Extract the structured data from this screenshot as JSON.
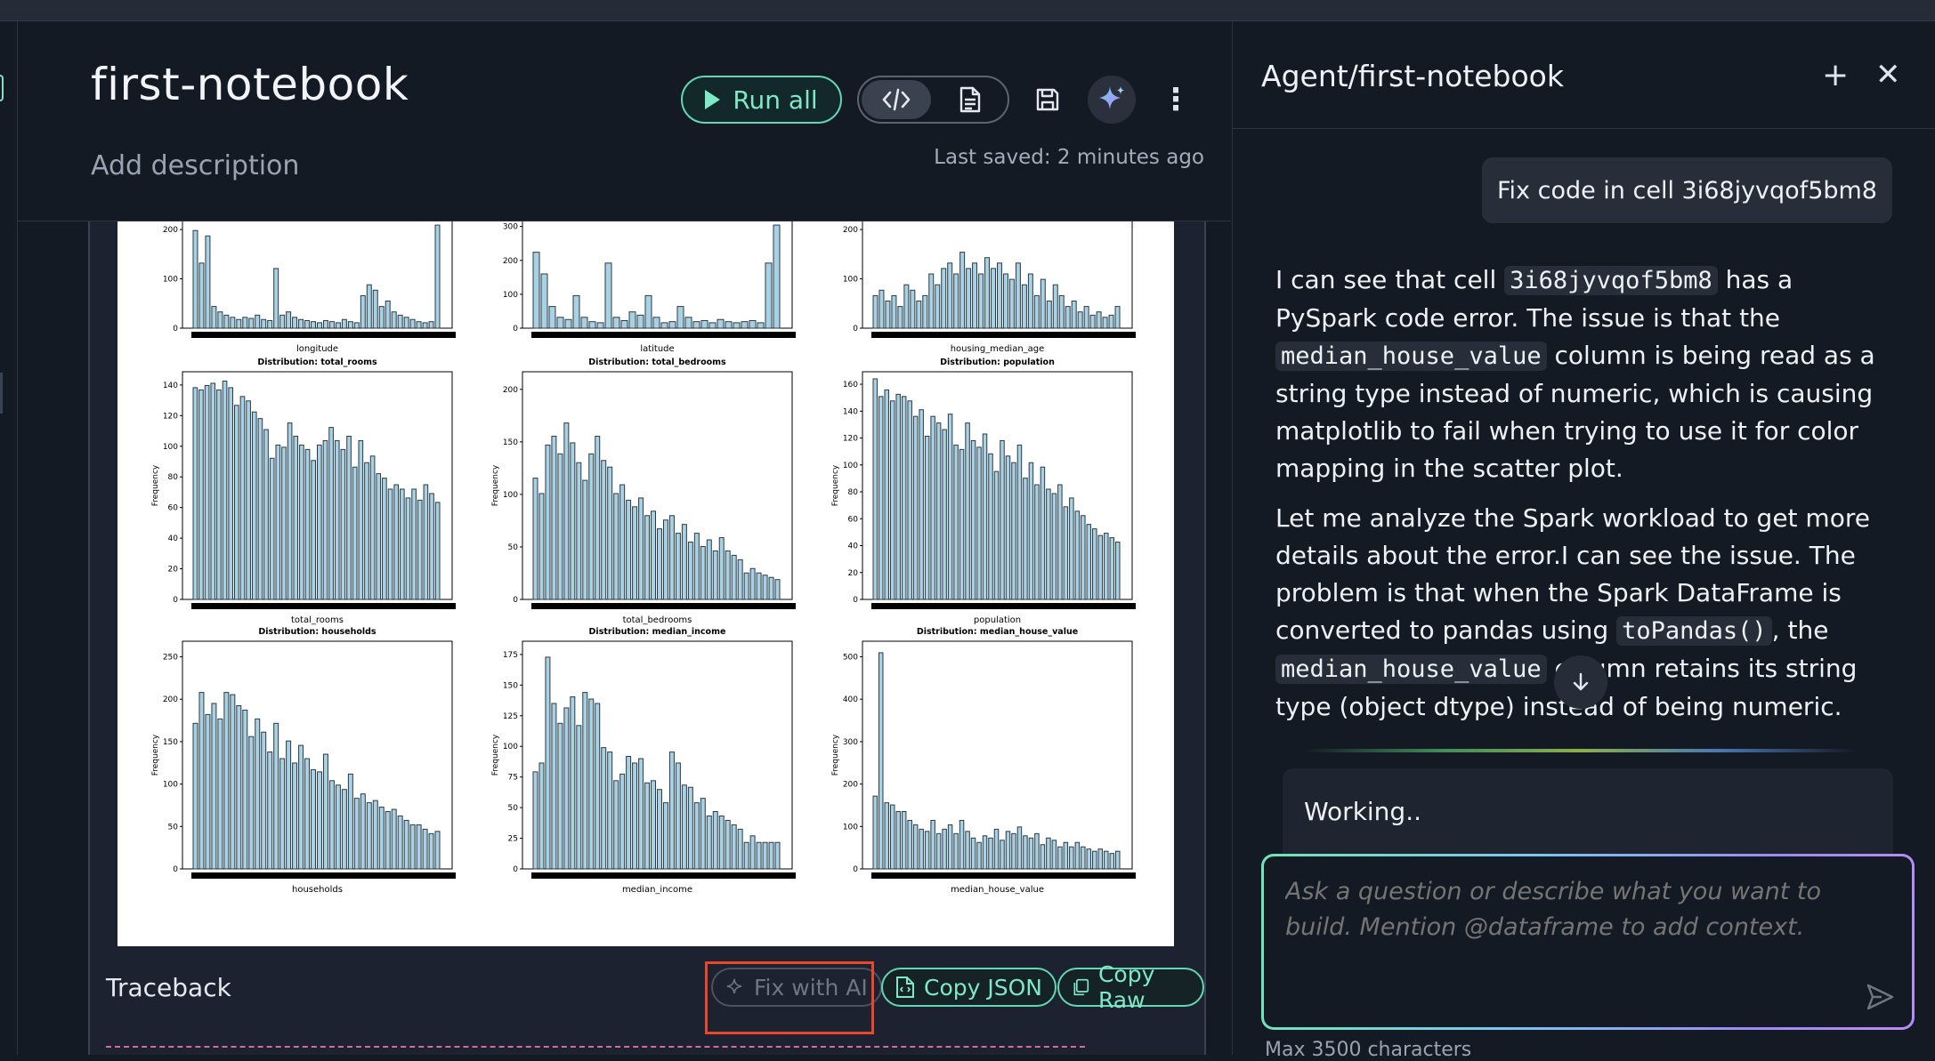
{
  "notebook": {
    "title": "first-notebook",
    "description_placeholder": "Add description",
    "last_saved": "Last saved: 2 minutes ago",
    "run_all_label": "Run all",
    "icons": [
      "play-icon",
      "code-icon",
      "document-icon",
      "save-icon",
      "sparkle-icon",
      "more-vertical-icon"
    ]
  },
  "plots": {
    "row0": [
      {
        "xlabel": "longitude",
        "yticks": [
          "0",
          "100",
          "200"
        ]
      },
      {
        "xlabel": "latitude",
        "yticks": [
          "0",
          "100",
          "200",
          "300"
        ]
      },
      {
        "xlabel": "housing_median_age",
        "yticks": [
          "0",
          "100",
          "200"
        ]
      }
    ],
    "panels": [
      {
        "title": "Distribution: total_rooms",
        "xlabel": "total_rooms",
        "ylabel": "Frequency",
        "yticks": [
          "0",
          "20",
          "40",
          "60",
          "80",
          "100",
          "120",
          "140"
        ]
      },
      {
        "title": "Distribution: total_bedrooms",
        "xlabel": "total_bedrooms",
        "ylabel": "Frequency",
        "yticks": [
          "0",
          "50",
          "100",
          "150",
          "200"
        ]
      },
      {
        "title": "Distribution: population",
        "xlabel": "population",
        "ylabel": "Frequency",
        "yticks": [
          "0",
          "20",
          "40",
          "60",
          "80",
          "100",
          "120",
          "140",
          "160"
        ]
      },
      {
        "title": "Distribution: households",
        "xlabel": "households",
        "ylabel": "Frequency",
        "yticks": [
          "0",
          "50",
          "100",
          "150",
          "200",
          "250"
        ]
      },
      {
        "title": "Distribution: median_income",
        "xlabel": "median_income",
        "ylabel": "Frequency",
        "yticks": [
          "0",
          "25",
          "50",
          "75",
          "100",
          "125",
          "150",
          "175"
        ]
      },
      {
        "title": "Distribution: median_house_value",
        "xlabel": "median_house_value",
        "ylabel": "Frequency",
        "yticks": [
          "0",
          "100",
          "200",
          "300",
          "400",
          "500"
        ]
      }
    ]
  },
  "traceback": {
    "label": "Traceback",
    "fix_with_ai": "Fix with AI",
    "copy_json": "Copy JSON",
    "copy_raw": "Copy Raw"
  },
  "agent": {
    "title": "Agent/first-notebook",
    "user_message": "Fix code in cell 3i68jyvqof5bm8",
    "reply": {
      "p1_a": "I can see that cell ",
      "p1_code1": "3i68jyvqof5bm8",
      "p1_b": " has a PySpark code error. The issue is that the ",
      "p1_code2": "median_house_value",
      "p1_c": " column is being read as a string type instead of numeric, which is causing matplotlib to fail when trying to use it for color mapping in the scatter plot.",
      "p2_a": "Let me analyze the Spark workload to get more details about the error.I can see the issue. The problem is that when the Spark DataFrame is converted to pandas using ",
      "p2_code1": "toPandas()",
      "p2_b": ", the ",
      "p2_code2": "median_house_value",
      "p2_c": " column retains its string type (object dtype) instead of being numeric. This"
    },
    "status": "Working..",
    "input_placeholder": "Ask a question or describe what you want to build. Mention @dataframe to add context.",
    "max_chars": "Max 3500 characters"
  },
  "colors": {
    "accent_green": "#63d7b3",
    "bar_fill": "#a8d1e3",
    "bar_edge": "#2b3a44",
    "highlight": "#e8472c"
  }
}
